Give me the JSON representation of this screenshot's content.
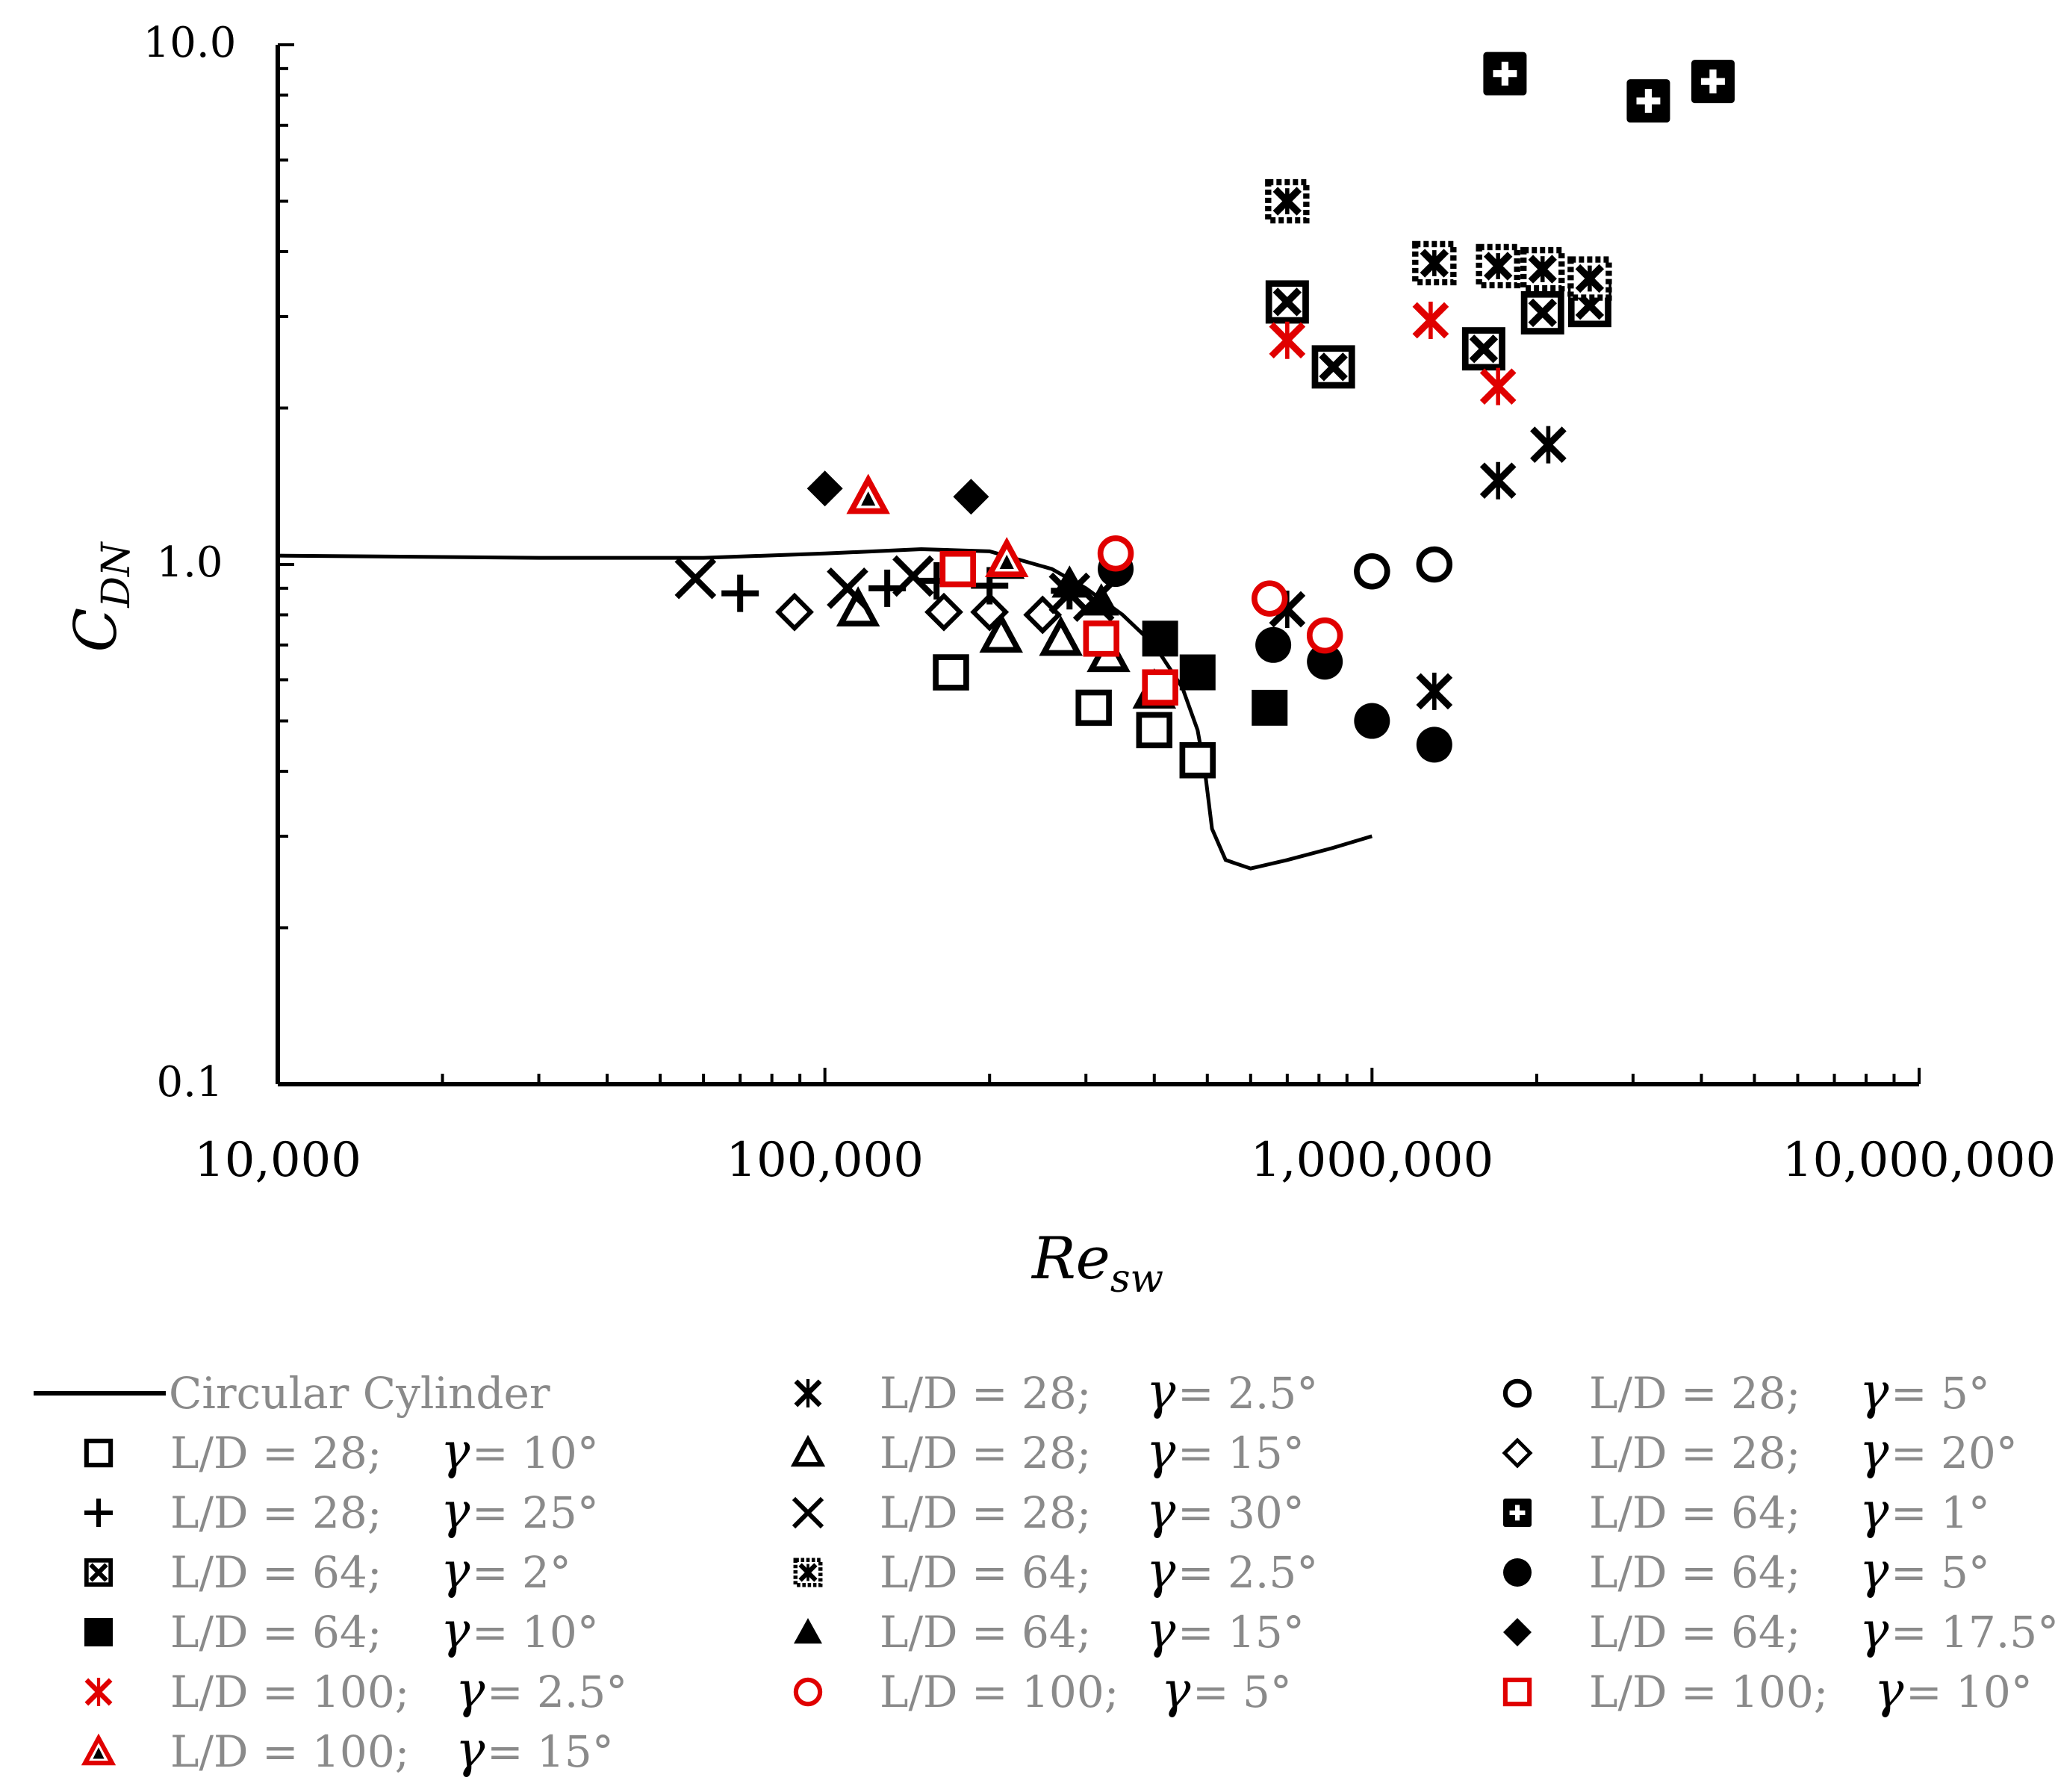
{
  "chart_data": {
    "type": "scatter",
    "title": "",
    "xlabel": "Re",
    "xlabel_sub": "sw",
    "ylabel": "C",
    "ylabel_sub": "DN",
    "xscale": "log",
    "yscale": "log",
    "xlim": [
      10000,
      10000000
    ],
    "ylim": [
      0.1,
      10
    ],
    "x_tick_labels": [
      {
        "value": 10000,
        "label": "10,000"
      },
      {
        "value": 100000,
        "label": "100,000"
      },
      {
        "value": 1000000,
        "label": "1,000,000"
      },
      {
        "value": 10000000,
        "label": "10,000,000"
      }
    ],
    "y_tick_labels": [
      {
        "value": 0.1,
        "label": "0.1"
      },
      {
        "value": 1,
        "label": "1.0"
      },
      {
        "value": 10,
        "label": "10.0"
      }
    ],
    "legend_position": "bottom",
    "line_series": {
      "name": "Circular Cylinder",
      "color": "#000000",
      "points": [
        [
          10000,
          1.04
        ],
        [
          30000,
          1.03
        ],
        [
          60000,
          1.03
        ],
        [
          100000,
          1.05
        ],
        [
          150000,
          1.07
        ],
        [
          200000,
          1.06
        ],
        [
          260000,
          0.98
        ],
        [
          300000,
          0.9
        ],
        [
          350000,
          0.8
        ],
        [
          400000,
          0.7
        ],
        [
          450000,
          0.58
        ],
        [
          480000,
          0.48
        ],
        [
          495000,
          0.4
        ],
        [
          510000,
          0.31
        ],
        [
          540000,
          0.27
        ],
        [
          600000,
          0.26
        ],
        [
          700000,
          0.27
        ],
        [
          850000,
          0.285
        ],
        [
          1000000,
          0.3
        ]
      ]
    },
    "series": [
      {
        "name": "L/D = 28; γ = 2.5°",
        "ld": "L/D = 28;",
        "gamma": "= 2.5°",
        "marker": "asterisk",
        "color": "#000000",
        "points": [
          [
            700000,
            0.82
          ],
          [
            1300000,
            0.57
          ],
          [
            1700000,
            1.45
          ],
          [
            2100000,
            1.7
          ]
        ]
      },
      {
        "name": "L/D = 28; γ = 5°",
        "ld": "L/D = 28;",
        "gamma": "= 5°",
        "marker": "circle-open",
        "color": "#000000",
        "points": [
          [
            1000000,
            0.97
          ],
          [
            1300000,
            1.0
          ]
        ]
      },
      {
        "name": "L/D = 28; γ = 10°",
        "ld": "L/D = 28;",
        "gamma": "= 10°",
        "marker": "square-open",
        "color": "#000000",
        "points": [
          [
            170000,
            0.62
          ],
          [
            310000,
            0.53
          ],
          [
            400000,
            0.48
          ],
          [
            480000,
            0.42
          ]
        ]
      },
      {
        "name": "L/D = 28; γ = 15°",
        "ld": "L/D = 28;",
        "gamma": "= 15°",
        "marker": "triangle-open",
        "color": "#000000",
        "points": [
          [
            115000,
            0.82
          ],
          [
            210000,
            0.73
          ],
          [
            270000,
            0.72
          ],
          [
            330000,
            0.67
          ],
          [
            400000,
            0.57
          ]
        ]
      },
      {
        "name": "L/D = 28; γ = 20°",
        "ld": "L/D = 28;",
        "gamma": "= 20°",
        "marker": "diamond-open",
        "color": "#000000",
        "points": [
          [
            88000,
            0.81
          ],
          [
            165000,
            0.81
          ],
          [
            200000,
            0.81
          ],
          [
            250000,
            0.8
          ]
        ]
      },
      {
        "name": "L/D = 28; γ = 25°",
        "ld": "L/D = 28;",
        "gamma": "= 25°",
        "marker": "plus",
        "color": "#000000",
        "points": [
          [
            70000,
            0.88
          ],
          [
            130000,
            0.9
          ],
          [
            160000,
            0.93
          ],
          [
            200000,
            0.91
          ],
          [
            280000,
            0.89
          ]
        ]
      },
      {
        "name": "L/D = 28; γ = 30°",
        "ld": "L/D = 28;",
        "gamma": "= 30°",
        "marker": "cross",
        "color": "#000000",
        "points": [
          [
            58000,
            0.94
          ],
          [
            110000,
            0.9
          ],
          [
            145000,
            0.95
          ],
          [
            280000,
            0.88
          ],
          [
            310000,
            0.85
          ]
        ]
      },
      {
        "name": "L/D = 64; γ = 1°",
        "ld": "L/D = 64;",
        "gamma": "= 1°",
        "marker": "square-plus",
        "color": "#000000",
        "points": [
          [
            1750000,
            8.8
          ],
          [
            3200000,
            7.8
          ],
          [
            4200000,
            8.5
          ]
        ]
      },
      {
        "name": "L/D = 64; γ = 2°",
        "ld": "L/D = 64;",
        "gamma": "= 2°",
        "marker": "square-x-white",
        "color": "#000000",
        "points": [
          [
            700000,
            3.2
          ],
          [
            850000,
            2.4
          ],
          [
            1600000,
            2.6
          ],
          [
            2050000,
            3.05
          ],
          [
            2500000,
            3.15
          ]
        ]
      },
      {
        "name": "L/D = 64; γ = 2.5°",
        "ld": "L/D = 64;",
        "gamma": "= 2.5°",
        "marker": "square-x-dotted",
        "color": "#000000",
        "points": [
          [
            700000,
            5.0
          ],
          [
            1300000,
            3.8
          ],
          [
            1700000,
            3.75
          ],
          [
            2050000,
            3.7
          ],
          [
            2500000,
            3.55
          ]
        ]
      },
      {
        "name": "L/D = 64; γ = 5°",
        "ld": "L/D = 64;",
        "gamma": "= 5°",
        "marker": "circle-filled",
        "color": "#000000",
        "points": [
          [
            340000,
            0.98
          ],
          [
            660000,
            0.7
          ],
          [
            820000,
            0.65
          ],
          [
            1000000,
            0.5
          ],
          [
            1300000,
            0.45
          ]
        ]
      },
      {
        "name": "L/D = 64; γ = 10°",
        "ld": "L/D = 64;",
        "gamma": "= 10°",
        "marker": "square-filled",
        "color": "#000000",
        "points": [
          [
            175000,
            0.98
          ],
          [
            410000,
            0.72
          ],
          [
            480000,
            0.62
          ],
          [
            650000,
            0.53
          ]
        ]
      },
      {
        "name": "L/D = 64; γ = 15°",
        "ld": "L/D = 64;",
        "gamma": "= 15°",
        "marker": "triangle-filled",
        "color": "#000000",
        "points": [
          [
            120000,
            1.35
          ],
          [
            215000,
            1.0
          ],
          [
            280000,
            0.92
          ],
          [
            320000,
            0.85
          ]
        ]
      },
      {
        "name": "L/D = 64; γ = 17.5°",
        "ld": "L/D = 64;",
        "gamma": "= 17.5°",
        "marker": "diamond-filled",
        "color": "#000000",
        "points": [
          [
            100000,
            1.4
          ],
          [
            185000,
            1.35
          ]
        ]
      },
      {
        "name": "L/D = 100; γ = 2.5°",
        "ld": "L/D = 100;",
        "gamma": "= 2.5°",
        "marker": "asterisk",
        "color": "#e00000",
        "points": [
          [
            700000,
            2.7
          ],
          [
            1280000,
            2.95
          ],
          [
            1700000,
            2.2
          ]
        ]
      },
      {
        "name": "L/D = 100; γ = 5°",
        "ld": "L/D = 100;",
        "gamma": "= 5°",
        "marker": "circle-open",
        "color": "#e00000",
        "points": [
          [
            340000,
            1.05
          ],
          [
            650000,
            0.86
          ],
          [
            820000,
            0.73
          ]
        ]
      },
      {
        "name": "L/D = 100; γ = 10°",
        "ld": "L/D = 100;",
        "gamma": "= 10°",
        "marker": "square-open",
        "color": "#e00000",
        "points": [
          [
            175000,
            0.98
          ],
          [
            320000,
            0.72
          ],
          [
            410000,
            0.58
          ]
        ]
      },
      {
        "name": "L/D = 100; γ = 15°",
        "ld": "L/D = 100;",
        "gamma": "= 15°",
        "marker": "triangle-open",
        "color": "#e00000",
        "points": [
          [
            120000,
            1.35
          ],
          [
            215000,
            1.02
          ]
        ]
      }
    ]
  },
  "legend": {
    "cylinder_label": "Circular Cylinder",
    "gamma_symbol": "γ",
    "entries": [
      {
        "marker": "square-open",
        "color": "#000000",
        "ld": "L/D = 28;",
        "gamma": "= 10°"
      },
      {
        "marker": "plus",
        "color": "#000000",
        "ld": "L/D = 28;",
        "gamma": "= 25°"
      },
      {
        "marker": "square-x-white",
        "color": "#000000",
        "ld": "L/D = 64;",
        "gamma": "= 2°"
      },
      {
        "marker": "square-filled",
        "color": "#000000",
        "ld": "L/D = 64;",
        "gamma": "= 10°"
      },
      {
        "marker": "asterisk",
        "color": "#e00000",
        "ld": "L/D = 100;",
        "gamma": "= 2.5°"
      },
      {
        "marker": "triangle-open",
        "color": "#e00000",
        "ld": "L/D = 100;",
        "gamma": "= 15°"
      },
      {
        "marker": "asterisk",
        "color": "#000000",
        "ld": "L/D = 28;",
        "gamma": "= 2.5°"
      },
      {
        "marker": "triangle-open",
        "color": "#000000",
        "ld": "L/D = 28;",
        "gamma": "= 15°"
      },
      {
        "marker": "cross",
        "color": "#000000",
        "ld": "L/D = 28;",
        "gamma": "= 30°"
      },
      {
        "marker": "square-x-dotted",
        "color": "#000000",
        "ld": "L/D = 64;",
        "gamma": "= 2.5°"
      },
      {
        "marker": "triangle-filled",
        "color": "#000000",
        "ld": "L/D = 64;",
        "gamma": "= 15°"
      },
      {
        "marker": "circle-open",
        "color": "#e00000",
        "ld": "L/D = 100;",
        "gamma": "= 5°"
      },
      {
        "marker": "circle-open",
        "color": "#000000",
        "ld": "L/D = 28;",
        "gamma": "= 5°"
      },
      {
        "marker": "diamond-open",
        "color": "#000000",
        "ld": "L/D = 28;",
        "gamma": "= 20°"
      },
      {
        "marker": "square-plus",
        "color": "#000000",
        "ld": "L/D = 64;",
        "gamma": "= 1°"
      },
      {
        "marker": "circle-filled",
        "color": "#000000",
        "ld": "L/D = 64;",
        "gamma": "= 5°"
      },
      {
        "marker": "diamond-filled",
        "color": "#000000",
        "ld": "L/D = 64;",
        "gamma": "= 17.5°"
      },
      {
        "marker": "square-open",
        "color": "#e00000",
        "ld": "L/D = 100;",
        "gamma": "= 10°"
      }
    ]
  }
}
